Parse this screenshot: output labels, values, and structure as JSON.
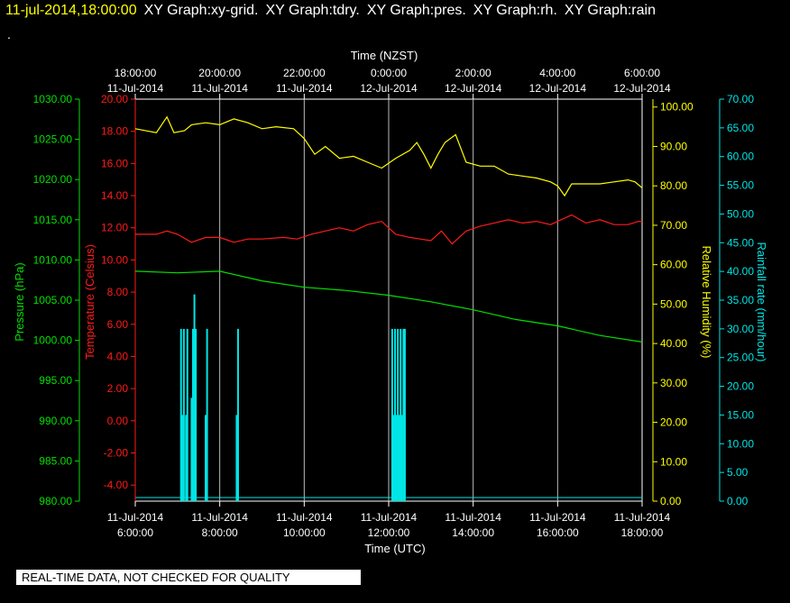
{
  "header": {
    "timestamp": "11-jul-2014,18:00:00",
    "graphs": [
      "XY Graph:xy-grid.",
      "XY Graph:tdry.",
      "XY Graph:pres.",
      "XY Graph:rh.",
      "XY Graph:rain"
    ],
    "dot": "."
  },
  "notice": "REAL-TIME DATA, NOT CHECKED FOR QUALITY",
  "colors": {
    "pressure": "#00e000",
    "temperature": "#ff1a1a",
    "humidity": "#ffff00",
    "rain": "#00e5e5",
    "grid": "#ffffff"
  },
  "chart_data": {
    "type": "line",
    "grid": true,
    "top_axis": {
      "title": "Time (NZST)",
      "ticks": [
        {
          "time": "18:00:00",
          "date": "11-Jul-2014"
        },
        {
          "time": "20:00:00",
          "date": "11-Jul-2014"
        },
        {
          "time": "22:00:00",
          "date": "11-Jul-2014"
        },
        {
          "time": "0:00:00",
          "date": "12-Jul-2014"
        },
        {
          "time": "2:00:00",
          "date": "12-Jul-2014"
        },
        {
          "time": "4:00:00",
          "date": "12-Jul-2014"
        },
        {
          "time": "6:00:00",
          "date": "12-Jul-2014"
        }
      ]
    },
    "bottom_axis": {
      "title": "Time (UTC)",
      "range": [
        "2014-07-11 06:00",
        "2014-07-11 18:00"
      ],
      "ticks": [
        {
          "date": "11-Jul-2014",
          "time": "6:00:00",
          "value": "2014-07-11 06:00"
        },
        {
          "date": "11-Jul-2014",
          "time": "8:00:00",
          "value": "2014-07-11 08:00"
        },
        {
          "date": "11-Jul-2014",
          "time": "10:00:00",
          "value": "2014-07-11 10:00"
        },
        {
          "date": "11-Jul-2014",
          "time": "12:00:00",
          "value": "2014-07-11 12:00"
        },
        {
          "date": "11-Jul-2014",
          "time": "14:00:00",
          "value": "2014-07-11 14:00"
        },
        {
          "date": "11-Jul-2014",
          "time": "16:00:00",
          "value": "2014-07-11 16:00"
        },
        {
          "date": "11-Jul-2014",
          "time": "18:00:00",
          "value": "2014-07-11 18:00"
        }
      ]
    },
    "axes": {
      "pressure": {
        "label": "Pressure (hPa)",
        "range": [
          980,
          1030
        ],
        "ticks": [
          "980.00",
          "985.00",
          "990.00",
          "995.00",
          "1000.00",
          "1005.00",
          "1010.00",
          "1015.00",
          "1020.00",
          "1025.00",
          "1030.00"
        ]
      },
      "temperature": {
        "label": "Temperature (Celsius)",
        "range": [
          -5,
          20
        ],
        "ticks": [
          "-4.00",
          "-2.00",
          "0.00",
          "2.00",
          "4.00",
          "6.00",
          "8.00",
          "10.00",
          "12.00",
          "14.00",
          "16.00",
          "18.00",
          "20.00"
        ]
      },
      "humidity": {
        "label": "Relative Humidity (%)",
        "range": [
          0,
          102
        ],
        "ticks": [
          "0.00",
          "10.00",
          "20.00",
          "30.00",
          "40.00",
          "50.00",
          "60.00",
          "70.00",
          "80.00",
          "90.00",
          "100.00"
        ]
      },
      "rain": {
        "label": "Rainfall rate (mm/hour)",
        "range": [
          0,
          70
        ],
        "ticks": [
          "0.00",
          "5.00",
          "10.00",
          "15.00",
          "20.00",
          "25.00",
          "30.00",
          "35.00",
          "40.00",
          "45.00",
          "50.00",
          "55.00",
          "60.00",
          "65.00",
          "70.00"
        ]
      }
    },
    "series": [
      {
        "name": "Relative Humidity (%)",
        "axis": "humidity",
        "x": [
          "2014-07-11 06:00",
          "2014-07-11 06:30",
          "2014-07-11 06:45",
          "2014-07-11 06:55",
          "2014-07-11 07:10",
          "2014-07-11 07:20",
          "2014-07-11 07:40",
          "2014-07-11 08:00",
          "2014-07-11 08:20",
          "2014-07-11 08:40",
          "2014-07-11 09:00",
          "2014-07-11 09:20",
          "2014-07-11 09:45",
          "2014-07-11 10:00",
          "2014-07-11 10:15",
          "2014-07-11 10:30",
          "2014-07-11 10:50",
          "2014-07-11 11:10",
          "2014-07-11 11:30",
          "2014-07-11 11:50",
          "2014-07-11 12:10",
          "2014-07-11 12:30",
          "2014-07-11 12:40",
          "2014-07-11 12:50",
          "2014-07-11 13:00",
          "2014-07-11 13:10",
          "2014-07-11 13:20",
          "2014-07-11 13:35",
          "2014-07-11 13:50",
          "2014-07-11 14:10",
          "2014-07-11 14:30",
          "2014-07-11 14:50",
          "2014-07-11 15:10",
          "2014-07-11 15:30",
          "2014-07-11 15:50",
          "2014-07-11 16:00",
          "2014-07-11 16:10",
          "2014-07-11 16:20",
          "2014-07-11 16:40",
          "2014-07-11 17:00",
          "2014-07-11 17:20",
          "2014-07-11 17:40",
          "2014-07-11 17:50",
          "2014-07-11 18:00"
        ],
        "y": [
          94.5,
          93.5,
          97.5,
          93.5,
          94,
          95.5,
          96,
          95.5,
          97,
          96,
          94.5,
          95,
          94.5,
          92,
          88,
          90,
          87,
          87.5,
          86,
          84.5,
          87,
          89,
          91,
          88,
          84.5,
          88,
          91,
          93,
          86,
          85,
          85,
          83,
          82.5,
          82,
          81,
          80,
          77.5,
          80.5,
          80.5,
          80.5,
          81,
          81.5,
          81,
          79.5
        ]
      },
      {
        "name": "Temperature (Celsius)",
        "axis": "temperature",
        "x": [
          "2014-07-11 06:00",
          "2014-07-11 06:30",
          "2014-07-11 06:45",
          "2014-07-11 07:00",
          "2014-07-11 07:20",
          "2014-07-11 07:40",
          "2014-07-11 08:00",
          "2014-07-11 08:20",
          "2014-07-11 08:40",
          "2014-07-11 09:00",
          "2014-07-11 09:30",
          "2014-07-11 09:50",
          "2014-07-11 10:10",
          "2014-07-11 10:30",
          "2014-07-11 10:50",
          "2014-07-11 11:10",
          "2014-07-11 11:30",
          "2014-07-11 11:50",
          "2014-07-11 12:10",
          "2014-07-11 12:30",
          "2014-07-11 12:45",
          "2014-07-11 13:00",
          "2014-07-11 13:15",
          "2014-07-11 13:30",
          "2014-07-11 13:50",
          "2014-07-11 14:10",
          "2014-07-11 14:30",
          "2014-07-11 14:50",
          "2014-07-11 15:10",
          "2014-07-11 15:30",
          "2014-07-11 15:50",
          "2014-07-11 16:00",
          "2014-07-11 16:20",
          "2014-07-11 16:40",
          "2014-07-11 17:00",
          "2014-07-11 17:20",
          "2014-07-11 17:40",
          "2014-07-11 17:55",
          "2014-07-11 18:00"
        ],
        "y": [
          11.6,
          11.6,
          11.8,
          11.6,
          11.1,
          11.4,
          11.4,
          11.1,
          11.3,
          11.3,
          11.4,
          11.3,
          11.6,
          11.8,
          12.0,
          11.8,
          12.2,
          12.4,
          11.6,
          11.4,
          11.3,
          11.2,
          11.8,
          11.0,
          11.8,
          12.1,
          12.3,
          12.5,
          12.3,
          12.4,
          12.2,
          12.4,
          12.8,
          12.3,
          12.5,
          12.2,
          12.2,
          12.4,
          12.4
        ]
      },
      {
        "name": "Pressure (hPa)",
        "axis": "pressure",
        "x": [
          "2014-07-11 06:00",
          "2014-07-11 07:00",
          "2014-07-11 08:00",
          "2014-07-11 09:00",
          "2014-07-11 10:00",
          "2014-07-11 11:00",
          "2014-07-11 12:00",
          "2014-07-11 13:00",
          "2014-07-11 14:00",
          "2014-07-11 15:00",
          "2014-07-11 16:00",
          "2014-07-11 17:00",
          "2014-07-11 18:00"
        ],
        "y": [
          1008.6,
          1008.4,
          1008.6,
          1007.4,
          1006.6,
          1006.2,
          1005.6,
          1004.8,
          1003.8,
          1002.6,
          1001.8,
          1000.6,
          999.8
        ]
      },
      {
        "name": "Rainfall rate (mm/hour)",
        "axis": "rain",
        "type": "bar",
        "x": [
          "2014-07-11 07:05",
          "2014-07-11 07:07",
          "2014-07-11 07:09",
          "2014-07-11 07:12",
          "2014-07-11 07:14",
          "2014-07-11 07:20",
          "2014-07-11 07:22",
          "2014-07-11 07:24",
          "2014-07-11 07:26",
          "2014-07-11 07:40",
          "2014-07-11 07:42",
          "2014-07-11 08:24",
          "2014-07-11 08:26",
          "2014-07-11 12:05",
          "2014-07-11 12:07",
          "2014-07-11 12:09",
          "2014-07-11 12:11",
          "2014-07-11 12:13",
          "2014-07-11 12:15",
          "2014-07-11 12:17",
          "2014-07-11 12:19",
          "2014-07-11 12:21",
          "2014-07-11 12:23"
        ],
        "y": [
          30,
          15,
          30,
          15,
          30,
          18,
          30,
          36,
          30,
          15,
          30,
          15,
          30,
          30,
          15,
          30,
          15,
          30,
          15,
          30,
          15,
          30,
          30
        ]
      }
    ]
  }
}
